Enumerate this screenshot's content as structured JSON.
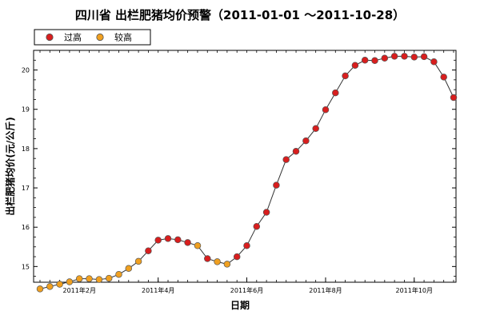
{
  "chart_data": {
    "type": "line",
    "title": "四川省 出栏肥猪均价预警（2011-01-01 ～2011-10-28）",
    "xlabel": "日期",
    "ylabel": "出栏肥猪均价(元/公斤)",
    "ylim": [
      14.6,
      20.5
    ],
    "yticks": [
      15,
      16,
      17,
      18,
      19,
      20
    ],
    "xticks": [
      {
        "label": "2011年2月",
        "week": 5
      },
      {
        "label": "2011年4月",
        "week": 13
      },
      {
        "label": "2011年6月",
        "week": 22
      },
      {
        "label": "2011年8月",
        "week": 30
      },
      {
        "label": "2011年10月",
        "week": 39
      }
    ],
    "xlim": [
      1,
      43
    ],
    "legend": [
      {
        "label": "过高",
        "color": "#d81e1e",
        "key": "high"
      },
      {
        "label": "较高",
        "color": "#f0a020",
        "key": "mid"
      }
    ],
    "legend_position": "top-left",
    "line_color": "#333333",
    "grid": false,
    "points": [
      {
        "week": 1,
        "value": 14.43,
        "level": "mid"
      },
      {
        "week": 2,
        "value": 14.49,
        "level": "mid"
      },
      {
        "week": 3,
        "value": 14.55,
        "level": "mid"
      },
      {
        "week": 4,
        "value": 14.61,
        "level": "mid"
      },
      {
        "week": 5,
        "value": 14.69,
        "level": "mid"
      },
      {
        "week": 6,
        "value": 14.69,
        "level": "mid"
      },
      {
        "week": 7,
        "value": 14.67,
        "level": "mid"
      },
      {
        "week": 8,
        "value": 14.7,
        "level": "mid"
      },
      {
        "week": 9,
        "value": 14.8,
        "level": "mid"
      },
      {
        "week": 10,
        "value": 14.95,
        "level": "mid"
      },
      {
        "week": 11,
        "value": 15.13,
        "level": "mid"
      },
      {
        "week": 12,
        "value": 15.4,
        "level": "high"
      },
      {
        "week": 13,
        "value": 15.67,
        "level": "high"
      },
      {
        "week": 14,
        "value": 15.71,
        "level": "high"
      },
      {
        "week": 15,
        "value": 15.68,
        "level": "high"
      },
      {
        "week": 16,
        "value": 15.61,
        "level": "high"
      },
      {
        "week": 17,
        "value": 15.53,
        "level": "mid"
      },
      {
        "week": 18,
        "value": 15.2,
        "level": "high"
      },
      {
        "week": 19,
        "value": 15.12,
        "level": "mid"
      },
      {
        "week": 20,
        "value": 15.06,
        "level": "mid"
      },
      {
        "week": 21,
        "value": 15.25,
        "level": "high"
      },
      {
        "week": 22,
        "value": 15.53,
        "level": "high"
      },
      {
        "week": 23,
        "value": 16.02,
        "level": "high"
      },
      {
        "week": 24,
        "value": 16.38,
        "level": "high"
      },
      {
        "week": 25,
        "value": 17.07,
        "level": "high"
      },
      {
        "week": 26,
        "value": 17.72,
        "level": "high"
      },
      {
        "week": 27,
        "value": 17.93,
        "level": "high"
      },
      {
        "week": 28,
        "value": 18.2,
        "level": "high"
      },
      {
        "week": 29,
        "value": 18.51,
        "level": "high"
      },
      {
        "week": 30,
        "value": 18.99,
        "level": "high"
      },
      {
        "week": 31,
        "value": 19.42,
        "level": "high"
      },
      {
        "week": 32,
        "value": 19.85,
        "level": "high"
      },
      {
        "week": 33,
        "value": 20.12,
        "level": "high"
      },
      {
        "week": 34,
        "value": 20.25,
        "level": "high"
      },
      {
        "week": 35,
        "value": 20.24,
        "level": "high"
      },
      {
        "week": 36,
        "value": 20.3,
        "level": "high"
      },
      {
        "week": 37,
        "value": 20.35,
        "level": "high"
      },
      {
        "week": 38,
        "value": 20.35,
        "level": "high"
      },
      {
        "week": 39,
        "value": 20.33,
        "level": "high"
      },
      {
        "week": 40,
        "value": 20.34,
        "level": "high"
      },
      {
        "week": 41,
        "value": 20.21,
        "level": "high"
      },
      {
        "week": 42,
        "value": 19.82,
        "level": "high"
      },
      {
        "week": 43,
        "value": 19.3,
        "level": "high"
      }
    ]
  }
}
